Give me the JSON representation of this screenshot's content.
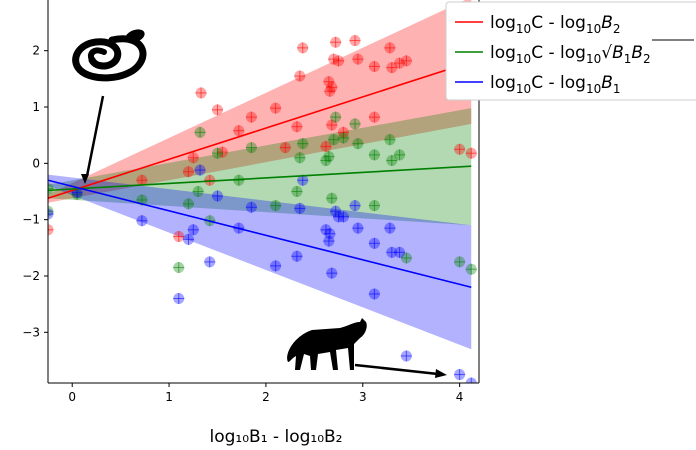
{
  "chart_data": {
    "type": "scatter",
    "xlabel": "log₁₀B₁ - log₁₀B₂",
    "xlim": [
      -0.25,
      4.2
    ],
    "ylim": [
      -3.9,
      2.9
    ],
    "xticks": [
      0,
      1,
      2,
      3,
      4
    ],
    "yticks": [
      -3,
      -2,
      -1,
      0,
      1,
      2
    ],
    "tick_labels_x": [
      "0",
      "1",
      "2",
      "3",
      "4"
    ],
    "tick_labels_y": [
      "−3",
      "−2",
      "−1",
      "0",
      "1",
      "2"
    ],
    "legend_placement": "top-right",
    "icons": [
      {
        "name": "snake-icon",
        "description": "snake silhouette with arrow pointing to lines converging near x=0.1"
      },
      {
        "name": "cat-icon",
        "description": "puma silhouette with arrow pointing to point near x=4"
      }
    ],
    "series": [
      {
        "name": "log₁₀C - log₁₀B₂",
        "legend_text": {
          "a": "log",
          "b": "10",
          "c": "C  -  log",
          "d": "10",
          "e": "B",
          "f": "2"
        },
        "color": "#ff0000",
        "line": {
          "x": [
            -0.25,
            4.12
          ],
          "y": [
            -0.62,
            1.8
          ]
        },
        "band": {
          "x": [
            -0.25,
            4.12
          ],
          "upper": [
            -0.55,
            2.95
          ],
          "lower": [
            -0.7,
            0.7
          ]
        },
        "points": [
          [
            -0.25,
            -1.18
          ],
          [
            0.72,
            -0.3
          ],
          [
            1.1,
            -1.3
          ],
          [
            1.2,
            -0.15
          ],
          [
            1.25,
            0.1
          ],
          [
            1.33,
            1.25
          ],
          [
            1.42,
            -0.3
          ],
          [
            1.5,
            0.95
          ],
          [
            1.55,
            0.2
          ],
          [
            1.72,
            0.58
          ],
          [
            1.85,
            0.82
          ],
          [
            2.1,
            0.98
          ],
          [
            2.2,
            0.28
          ],
          [
            2.32,
            0.65
          ],
          [
            2.35,
            1.55
          ],
          [
            2.38,
            2.05
          ],
          [
            2.62,
            0.3
          ],
          [
            2.65,
            1.45
          ],
          [
            2.66,
            1.28
          ],
          [
            2.68,
            1.35
          ],
          [
            2.68,
            0.68
          ],
          [
            2.7,
            1.85
          ],
          [
            2.72,
            2.15
          ],
          [
            2.75,
            1.82
          ],
          [
            2.8,
            0.55
          ],
          [
            2.92,
            2.18
          ],
          [
            2.95,
            1.85
          ],
          [
            3.12,
            1.72
          ],
          [
            3.12,
            0.82
          ],
          [
            3.28,
            2.05
          ],
          [
            3.3,
            1.7
          ],
          [
            3.38,
            1.78
          ],
          [
            3.45,
            1.82
          ],
          [
            4.0,
            0.25
          ],
          [
            4.12,
            0.18
          ]
        ]
      },
      {
        "name": "log₁₀C - log₁₀√(B₁B₂)",
        "legend_text": {
          "a": "log",
          "b": "10",
          "c": "C  -  log",
          "d": "10",
          "e": "B",
          "f": "1",
          "g": "B",
          "h": "2"
        },
        "color": "#008000",
        "line": {
          "x": [
            -0.25,
            4.12
          ],
          "y": [
            -0.48,
            -0.05
          ]
        },
        "band": {
          "x": [
            -0.25,
            4.12
          ],
          "upper": [
            -0.38,
            0.98
          ],
          "lower": [
            -0.62,
            -1.1
          ]
        },
        "points": [
          [
            -0.25,
            -0.45
          ],
          [
            -0.25,
            -0.85
          ],
          [
            0.05,
            -0.55
          ],
          [
            0.72,
            -0.65
          ],
          [
            1.1,
            -1.85
          ],
          [
            1.2,
            -0.72
          ],
          [
            1.3,
            -0.5
          ],
          [
            1.32,
            0.55
          ],
          [
            1.42,
            -1.02
          ],
          [
            1.5,
            0.18
          ],
          [
            1.72,
            -0.3
          ],
          [
            1.85,
            0.28
          ],
          [
            2.1,
            -0.75
          ],
          [
            2.32,
            -0.5
          ],
          [
            2.35,
            0.1
          ],
          [
            2.38,
            0.35
          ],
          [
            2.62,
            0.05
          ],
          [
            2.65,
            0.12
          ],
          [
            2.68,
            -0.62
          ],
          [
            2.7,
            0.42
          ],
          [
            2.72,
            0.82
          ],
          [
            2.8,
            0.45
          ],
          [
            2.92,
            0.7
          ],
          [
            2.95,
            0.35
          ],
          [
            3.12,
            -0.75
          ],
          [
            3.12,
            0.15
          ],
          [
            3.28,
            0.42
          ],
          [
            3.3,
            0.05
          ],
          [
            3.38,
            0.15
          ],
          [
            3.45,
            -1.68
          ],
          [
            4.0,
            -1.75
          ],
          [
            4.12,
            -1.88
          ]
        ]
      },
      {
        "name": "log₁₀C - log₁₀B₁",
        "legend_text": {
          "a": "log",
          "b": "10",
          "c": "C  -  log",
          "d": "10",
          "e": "B",
          "f": "1"
        },
        "color": "#0000ff",
        "line": {
          "x": [
            -0.25,
            4.12
          ],
          "y": [
            -0.3,
            -2.2
          ]
        },
        "band": {
          "x": [
            -0.25,
            4.12
          ],
          "upper": [
            -0.2,
            -1.1
          ],
          "lower": [
            -0.4,
            -3.3
          ]
        },
        "points": [
          [
            -0.25,
            -0.9
          ],
          [
            0.05,
            -0.52
          ],
          [
            0.72,
            -1.02
          ],
          [
            1.1,
            -2.4
          ],
          [
            1.2,
            -1.35
          ],
          [
            1.25,
            -1.18
          ],
          [
            1.32,
            -0.12
          ],
          [
            1.42,
            -1.75
          ],
          [
            1.5,
            -0.58
          ],
          [
            1.72,
            -1.15
          ],
          [
            1.85,
            -0.78
          ],
          [
            2.1,
            -1.82
          ],
          [
            2.32,
            -1.65
          ],
          [
            2.35,
            -0.8
          ],
          [
            2.38,
            -0.3
          ],
          [
            2.62,
            -1.18
          ],
          [
            2.65,
            -1.38
          ],
          [
            2.66,
            -1.25
          ],
          [
            2.68,
            -1.95
          ],
          [
            2.72,
            -0.85
          ],
          [
            2.75,
            -0.95
          ],
          [
            2.8,
            -0.95
          ],
          [
            2.92,
            -0.75
          ],
          [
            2.95,
            -1.15
          ],
          [
            3.12,
            -1.42
          ],
          [
            3.12,
            -2.32
          ],
          [
            3.28,
            -1.15
          ],
          [
            3.3,
            -1.58
          ],
          [
            3.38,
            -1.58
          ],
          [
            3.45,
            -3.42
          ],
          [
            4.0,
            -3.75
          ],
          [
            4.12,
            -3.9
          ]
        ]
      }
    ]
  }
}
